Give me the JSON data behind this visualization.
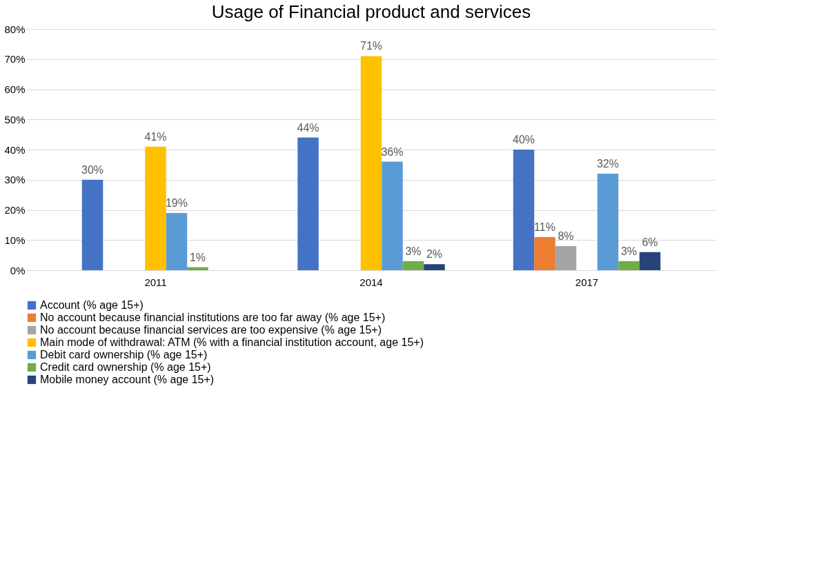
{
  "chart_data": {
    "type": "bar",
    "title": "Usage of Financial product and services",
    "categories": [
      "2011",
      "2014",
      "2017"
    ],
    "series": [
      {
        "name": "Account (% age 15+)",
        "color": "#4472c4",
        "values": [
          30,
          44,
          40
        ],
        "value_labels": [
          "30%",
          "44%",
          "40%"
        ]
      },
      {
        "name": "No account because financial institutions are too far away (% age 15+)",
        "color": "#ed7d31",
        "values": [
          null,
          null,
          11
        ],
        "value_labels": [
          null,
          null,
          "11%"
        ]
      },
      {
        "name": "No account because financial services are too expensive (% age 15+)",
        "color": "#a5a5a5",
        "values": [
          null,
          null,
          8
        ],
        "value_labels": [
          null,
          null,
          "8%"
        ]
      },
      {
        "name": "Main mode of withdrawal: ATM (% with a financial institution account, age 15+)",
        "color": "#ffc000",
        "values": [
          41,
          71,
          null
        ],
        "value_labels": [
          "41%",
          "71%",
          null
        ]
      },
      {
        "name": "Debit card ownership (% age 15+)",
        "color": "#5b9bd5",
        "values": [
          19,
          36,
          32
        ],
        "value_labels": [
          "19%",
          "36%",
          "32%"
        ]
      },
      {
        "name": "Credit card ownership (% age 15+)",
        "color": "#70ad47",
        "values": [
          1,
          3,
          3
        ],
        "value_labels": [
          "1%",
          "3%",
          "3%"
        ]
      },
      {
        "name": "Mobile money account (% age 15+)",
        "color": "#264478",
        "values": [
          null,
          2,
          6
        ],
        "value_labels": [
          null,
          "2%",
          "6%"
        ]
      }
    ],
    "ylim": [
      0,
      80
    ],
    "yticks": [
      {
        "value": 0,
        "label": "0%"
      },
      {
        "value": 10,
        "label": "10%"
      },
      {
        "value": 20,
        "label": "20%"
      },
      {
        "value": 30,
        "label": "30%"
      },
      {
        "value": 40,
        "label": "40%"
      },
      {
        "value": 50,
        "label": "50%"
      },
      {
        "value": 60,
        "label": "60%"
      },
      {
        "value": 70,
        "label": "70%"
      },
      {
        "value": 80,
        "label": "80%"
      }
    ],
    "grid": "y",
    "legend": "bottom"
  }
}
